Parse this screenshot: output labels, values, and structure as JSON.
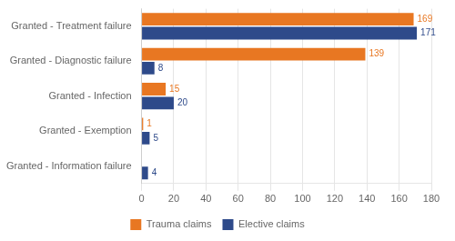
{
  "chart_data": {
    "type": "bar",
    "orientation": "horizontal",
    "categories": [
      "Granted - Treatment failure",
      "Granted - Diagnostic failure",
      "Granted - Infection",
      "Granted - Exemption",
      "Granted - Information failure"
    ],
    "series": [
      {
        "name": "Trauma claims",
        "color": "#E87722",
        "values": [
          169,
          139,
          15,
          1,
          0
        ]
      },
      {
        "name": "Elective claims",
        "color": "#2E4A8A",
        "values": [
          171,
          8,
          20,
          5,
          4
        ]
      }
    ],
    "xlim": [
      0,
      180
    ],
    "xticks": [
      0,
      20,
      40,
      60,
      80,
      100,
      120,
      140,
      160,
      180
    ],
    "grid": true,
    "legend": "bottom",
    "data_labels": true
  }
}
